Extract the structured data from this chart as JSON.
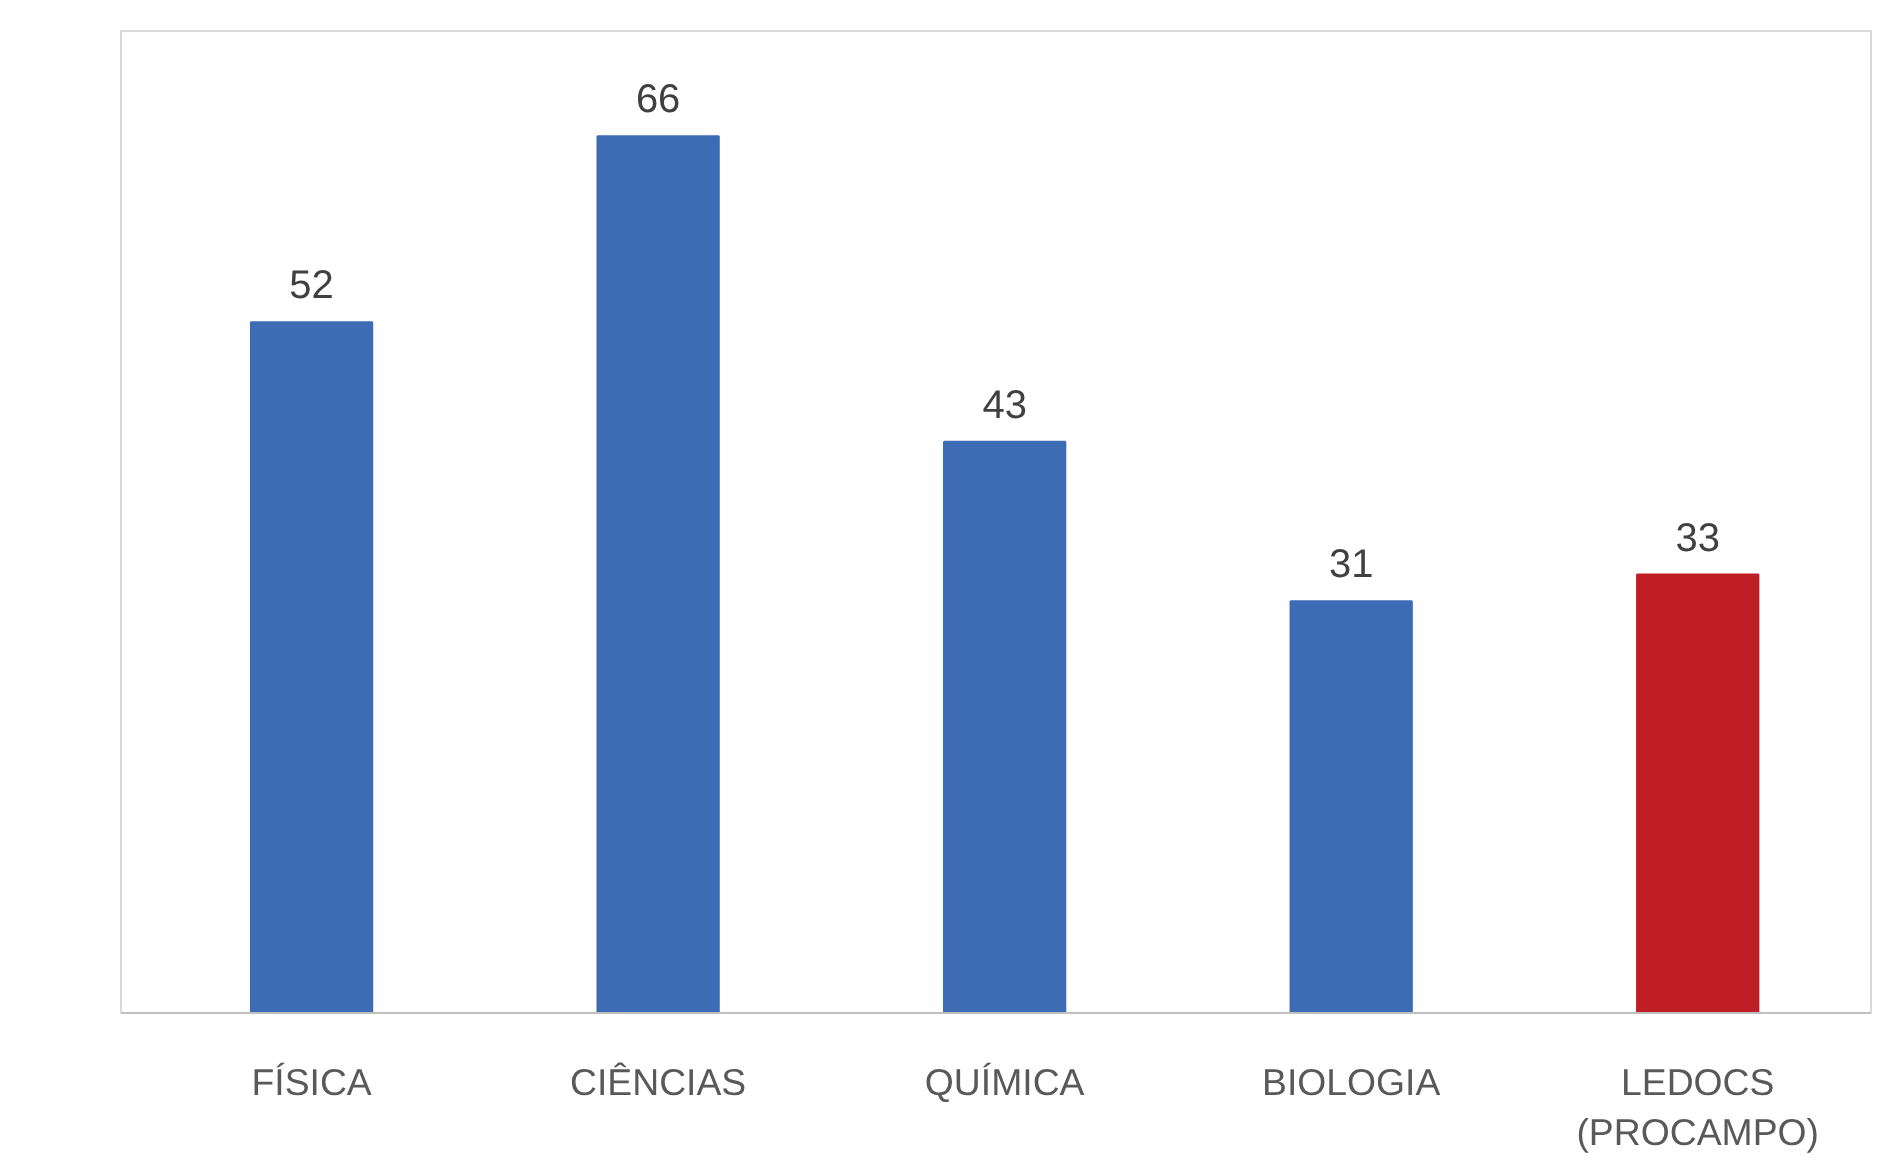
{
  "chart_data": {
    "type": "bar",
    "categories": [
      "FÍSICA",
      "CIÊNCIAS",
      "QUÍMICA",
      "BIOLOGIA",
      "LEDOCS\n(PROCAMPO)"
    ],
    "values": [
      52,
      66,
      43,
      31,
      33
    ],
    "colors": [
      "#3d6cb5",
      "#3d6cb5",
      "#3d6cb5",
      "#3d6cb5",
      "#be1e24"
    ],
    "data_labels": true
  }
}
